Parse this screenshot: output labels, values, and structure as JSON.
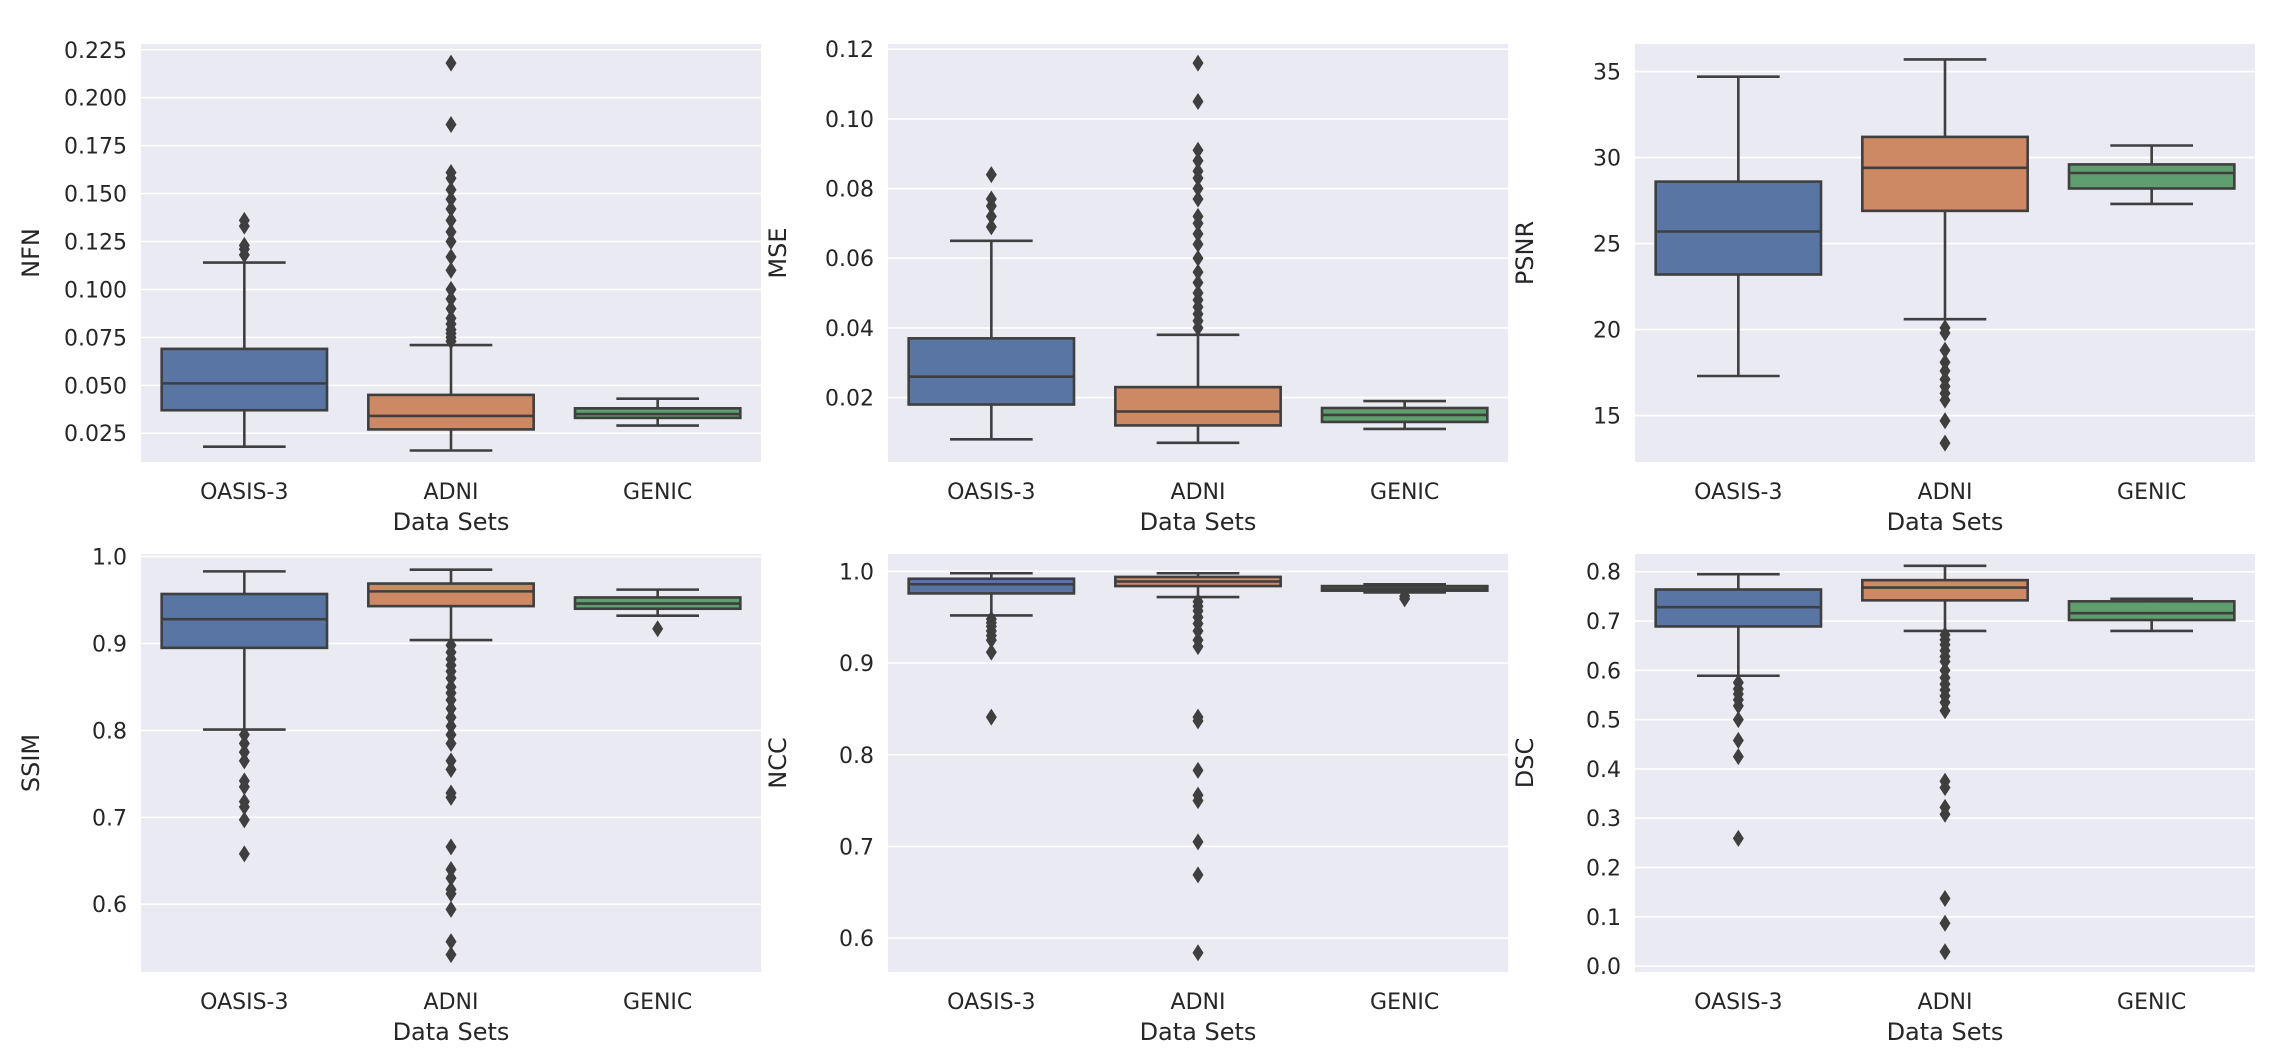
{
  "colors": {
    "background": "#eaeaf2",
    "grid": "#ffffff",
    "line": "#3f3f3f",
    "OASIS-3": "#5875a4",
    "ADNI": "#cc8963",
    "GENIC": "#5f9e6e"
  },
  "chart_data": [
    {
      "type": "box",
      "ylabel": "NFN",
      "xlabel": "Data Sets",
      "categories": [
        "OASIS-3",
        "ADNI",
        "GENIC"
      ],
      "ylim": [
        0.01,
        0.228
      ],
      "yticks": [
        0.025,
        0.05,
        0.075,
        0.1,
        0.125,
        0.15,
        0.175,
        0.2,
        0.225
      ],
      "ytick_labels": [
        "0.025",
        "0.050",
        "0.075",
        "0.100",
        "0.125",
        "0.150",
        "0.175",
        "0.200",
        "0.225"
      ],
      "boxes": [
        {
          "category": "OASIS-3",
          "whislo": 0.018,
          "q1": 0.037,
          "med": 0.051,
          "q3": 0.069,
          "whishi": 0.114,
          "fliers": [
            0.118,
            0.121,
            0.123,
            0.133,
            0.136
          ]
        },
        {
          "category": "ADNI",
          "whislo": 0.016,
          "q1": 0.027,
          "med": 0.034,
          "q3": 0.045,
          "whishi": 0.071,
          "fliers": [
            0.073,
            0.075,
            0.077,
            0.079,
            0.082,
            0.085,
            0.09,
            0.095,
            0.1,
            0.11,
            0.117,
            0.125,
            0.13,
            0.136,
            0.142,
            0.147,
            0.152,
            0.158,
            0.161,
            0.186,
            0.218
          ]
        },
        {
          "category": "GENIC",
          "whislo": 0.029,
          "q1": 0.033,
          "med": 0.035,
          "q3": 0.038,
          "whishi": 0.043,
          "fliers": []
        }
      ]
    },
    {
      "type": "box",
      "ylabel": "MSE",
      "xlabel": "Data Sets",
      "categories": [
        "OASIS-3",
        "ADNI",
        "GENIC"
      ],
      "ylim": [
        0.0015,
        0.1215
      ],
      "yticks": [
        0.02,
        0.04,
        0.06,
        0.08,
        0.1,
        0.12
      ],
      "ytick_labels": [
        "0.02",
        "0.04",
        "0.06",
        "0.08",
        "0.10",
        "0.12"
      ],
      "boxes": [
        {
          "category": "OASIS-3",
          "whislo": 0.008,
          "q1": 0.018,
          "med": 0.026,
          "q3": 0.037,
          "whishi": 0.065,
          "fliers": [
            0.069,
            0.072,
            0.075,
            0.077,
            0.084
          ]
        },
        {
          "category": "ADNI",
          "whislo": 0.007,
          "q1": 0.012,
          "med": 0.016,
          "q3": 0.023,
          "whishi": 0.038,
          "fliers": [
            0.04,
            0.042,
            0.044,
            0.046,
            0.048,
            0.05,
            0.053,
            0.056,
            0.06,
            0.064,
            0.067,
            0.07,
            0.072,
            0.077,
            0.08,
            0.083,
            0.085,
            0.088,
            0.091,
            0.105,
            0.116
          ]
        },
        {
          "category": "GENIC",
          "whislo": 0.011,
          "q1": 0.013,
          "med": 0.015,
          "q3": 0.017,
          "whishi": 0.019,
          "fliers": []
        }
      ]
    },
    {
      "type": "box",
      "ylabel": "PSNR",
      "xlabel": "Data Sets",
      "categories": [
        "OASIS-3",
        "ADNI",
        "GENIC"
      ],
      "ylim": [
        12.3,
        36.6
      ],
      "yticks": [
        15,
        20,
        25,
        30,
        35
      ],
      "ytick_labels": [
        "15",
        "20",
        "25",
        "30",
        "35"
      ],
      "boxes": [
        {
          "category": "OASIS-3",
          "whislo": 17.3,
          "q1": 23.2,
          "med": 25.7,
          "q3": 28.6,
          "whishi": 34.7,
          "fliers": []
        },
        {
          "category": "ADNI",
          "whislo": 20.6,
          "q1": 26.9,
          "med": 29.4,
          "q3": 31.2,
          "whishi": 35.7,
          "fliers": [
            20.1,
            19.8,
            18.8,
            18.1,
            17.6,
            17.1,
            16.7,
            16.3,
            15.9,
            14.7,
            13.4
          ]
        },
        {
          "category": "GENIC",
          "whislo": 27.3,
          "q1": 28.2,
          "med": 29.1,
          "q3": 29.6,
          "whishi": 30.7,
          "fliers": []
        }
      ]
    },
    {
      "type": "box",
      "ylabel": "SSIM",
      "xlabel": "Data Sets",
      "categories": [
        "OASIS-3",
        "ADNI",
        "GENIC"
      ],
      "ylim": [
        0.522,
        1.003
      ],
      "yticks": [
        0.6,
        0.7,
        0.8,
        0.9,
        1.0
      ],
      "ytick_labels": [
        "0.6",
        "0.7",
        "0.8",
        "0.9",
        "1.0"
      ],
      "boxes": [
        {
          "category": "OASIS-3",
          "whislo": 0.801,
          "q1": 0.895,
          "med": 0.928,
          "q3": 0.957,
          "whishi": 0.983,
          "fliers": [
            0.795,
            0.785,
            0.775,
            0.765,
            0.742,
            0.735,
            0.718,
            0.712,
            0.697,
            0.658
          ]
        },
        {
          "category": "ADNI",
          "whislo": 0.904,
          "q1": 0.943,
          "med": 0.96,
          "q3": 0.969,
          "whishi": 0.985,
          "fliers": [
            0.898,
            0.89,
            0.882,
            0.875,
            0.868,
            0.86,
            0.85,
            0.843,
            0.835,
            0.825,
            0.815,
            0.805,
            0.795,
            0.785,
            0.765,
            0.755,
            0.728,
            0.723,
            0.666,
            0.64,
            0.63,
            0.617,
            0.612,
            0.594,
            0.557,
            0.542
          ]
        },
        {
          "category": "GENIC",
          "whislo": 0.932,
          "q1": 0.94,
          "med": 0.946,
          "q3": 0.953,
          "whishi": 0.962,
          "fliers": [
            0.917
          ]
        }
      ]
    },
    {
      "type": "box",
      "ylabel": "NCC",
      "xlabel": "Data Sets",
      "categories": [
        "OASIS-3",
        "ADNI",
        "GENIC"
      ],
      "ylim": [
        0.563,
        1.019
      ],
      "yticks": [
        0.6,
        0.7,
        0.8,
        0.9,
        1.0
      ],
      "ytick_labels": [
        "0.6",
        "0.7",
        "0.8",
        "0.9",
        "1.0"
      ],
      "boxes": [
        {
          "category": "OASIS-3",
          "whislo": 0.952,
          "q1": 0.976,
          "med": 0.986,
          "q3": 0.992,
          "whishi": 0.998,
          "fliers": [
            0.948,
            0.944,
            0.94,
            0.935,
            0.93,
            0.925,
            0.912,
            0.841
          ]
        },
        {
          "category": "ADNI",
          "whislo": 0.972,
          "q1": 0.984,
          "med": 0.989,
          "q3": 0.994,
          "whishi": 0.998,
          "fliers": [
            0.967,
            0.962,
            0.957,
            0.95,
            0.943,
            0.935,
            0.925,
            0.918,
            0.841,
            0.837,
            0.783,
            0.756,
            0.75,
            0.705,
            0.669,
            0.584
          ]
        },
        {
          "category": "GENIC",
          "whislo": 0.977,
          "q1": 0.979,
          "med": 0.981,
          "q3": 0.984,
          "whishi": 0.986,
          "fliers": [
            0.973,
            0.97
          ]
        }
      ]
    },
    {
      "type": "box",
      "ylabel": "DSC",
      "xlabel": "Data Sets",
      "categories": [
        "OASIS-3",
        "ADNI",
        "GENIC"
      ],
      "ylim": [
        -0.012,
        0.836
      ],
      "yticks": [
        0.0,
        0.1,
        0.2,
        0.3,
        0.4,
        0.5,
        0.6,
        0.7,
        0.8
      ],
      "ytick_labels": [
        "0.0",
        "0.1",
        "0.2",
        "0.3",
        "0.4",
        "0.5",
        "0.6",
        "0.7",
        "0.8"
      ],
      "boxes": [
        {
          "category": "OASIS-3",
          "whislo": 0.589,
          "q1": 0.689,
          "med": 0.728,
          "q3": 0.764,
          "whishi": 0.795,
          "fliers": [
            0.575,
            0.562,
            0.552,
            0.54,
            0.528,
            0.5,
            0.458,
            0.425,
            0.259
          ]
        },
        {
          "category": "ADNI",
          "whislo": 0.68,
          "q1": 0.742,
          "med": 0.768,
          "q3": 0.783,
          "whishi": 0.812,
          "fliers": [
            0.672,
            0.662,
            0.652,
            0.64,
            0.628,
            0.618,
            0.6,
            0.585,
            0.572,
            0.56,
            0.548,
            0.535,
            0.518,
            0.375,
            0.362,
            0.322,
            0.308,
            0.137,
            0.087,
            0.029
          ]
        },
        {
          "category": "GENIC",
          "whislo": 0.68,
          "q1": 0.702,
          "med": 0.716,
          "q3": 0.74,
          "whishi": 0.745,
          "fliers": []
        }
      ]
    }
  ]
}
